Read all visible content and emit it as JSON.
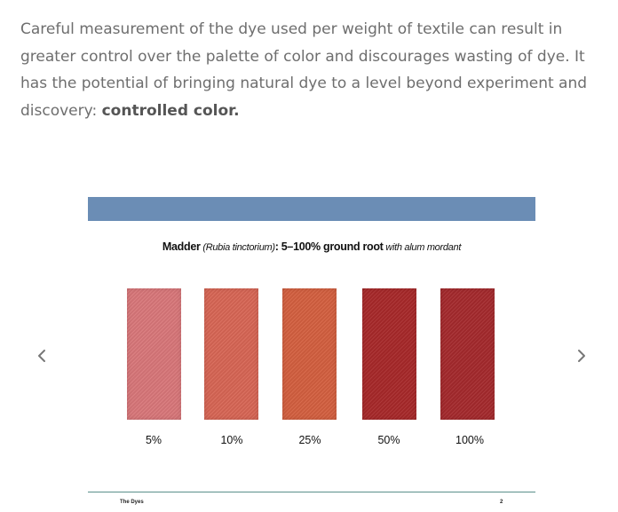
{
  "intro": {
    "text": "Careful measurement of the dye used per weight of textile can result in greater control over the palette of color and discourages wasting of  dye. It has the potential of bringing natural dye to a level beyond experiment and discovery: ",
    "emphasis": "controlled color."
  },
  "slide": {
    "band_color": "#6b8db5",
    "caption": {
      "dye_name": "Madder",
      "latin_name": " (Rubia tinctorium)",
      "range": ": 5–100% ground root",
      "mordant": " with alum mordant"
    },
    "swatches": [
      {
        "label": "5%",
        "color": "#d9777a"
      },
      {
        "label": "10%",
        "color": "#d86655"
      },
      {
        "label": "25%",
        "color": "#d46040"
      },
      {
        "label": "50%",
        "color": "#a8292a"
      },
      {
        "label": "100%",
        "color": "#a52a2d"
      }
    ],
    "footer": {
      "section": "The Dyes",
      "page": "2"
    }
  },
  "nav": {
    "prev_icon": "chevron-left-icon",
    "next_icon": "chevron-right-icon"
  }
}
